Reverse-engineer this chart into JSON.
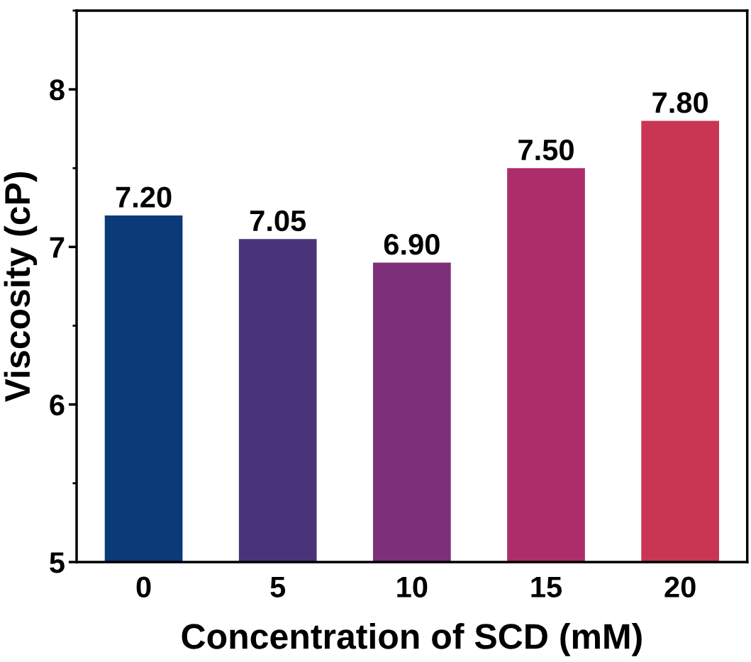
{
  "chart_data": {
    "type": "bar",
    "xlabel": "Concentration of SCD (mM)",
    "ylabel": "Viscosity (cP)",
    "categories": [
      "0",
      "5",
      "10",
      "15",
      "20"
    ],
    "values": [
      7.2,
      7.05,
      6.9,
      7.5,
      7.8
    ],
    "value_labels": [
      "7.20",
      "7.05",
      "6.90",
      "7.50",
      "7.80"
    ],
    "colors": [
      "#0a3a78",
      "#4a3479",
      "#7e2f7a",
      "#ad2d6a",
      "#c83653"
    ],
    "ylim": [
      5,
      8.5
    ],
    "yticks": [
      5,
      6,
      7,
      8
    ],
    "grid": false,
    "legend": false
  }
}
